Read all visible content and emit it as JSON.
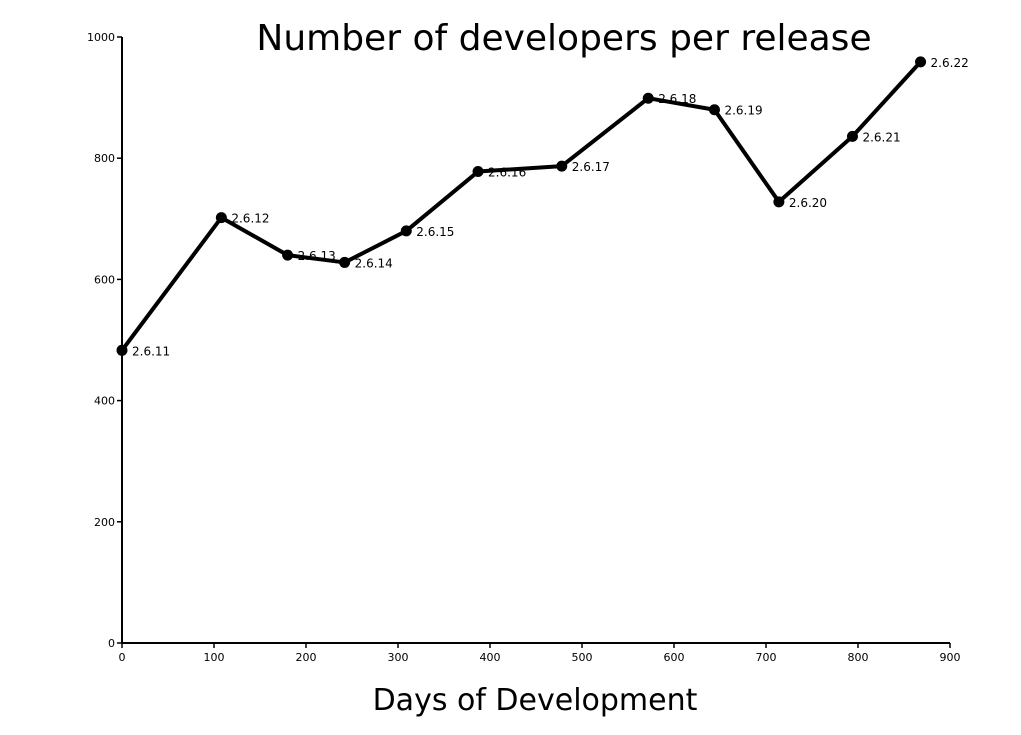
{
  "chart_data": {
    "type": "line",
    "title": "Number of developers per release",
    "xlabel": "Days of Development",
    "ylabel": "",
    "xlim": [
      0,
      900
    ],
    "ylim": [
      0,
      1000
    ],
    "xticks": [
      0,
      100,
      200,
      300,
      400,
      500,
      600,
      700,
      800,
      900
    ],
    "yticks": [
      0,
      200,
      400,
      600,
      800,
      1000
    ],
    "grid": false,
    "line_color": "#000000",
    "series": [
      {
        "points": [
          {
            "x": 0,
            "y": 483,
            "label": "2.6.11"
          },
          {
            "x": 108,
            "y": 702,
            "label": "2.6.12"
          },
          {
            "x": 180,
            "y": 640,
            "label": "2.6.13"
          },
          {
            "x": 242,
            "y": 628,
            "label": "2.6.14"
          },
          {
            "x": 309,
            "y": 680,
            "label": "2.6.15"
          },
          {
            "x": 387,
            "y": 778,
            "label": "2.6.16"
          },
          {
            "x": 478,
            "y": 787,
            "label": "2.6.17"
          },
          {
            "x": 572,
            "y": 899,
            "label": "2.6.18"
          },
          {
            "x": 644,
            "y": 880,
            "label": "2.6.19"
          },
          {
            "x": 714,
            "y": 728,
            "label": "2.6.20"
          },
          {
            "x": 794,
            "y": 836,
            "label": "2.6.21"
          },
          {
            "x": 868,
            "y": 959,
            "label": "2.6.22"
          }
        ]
      }
    ]
  }
}
